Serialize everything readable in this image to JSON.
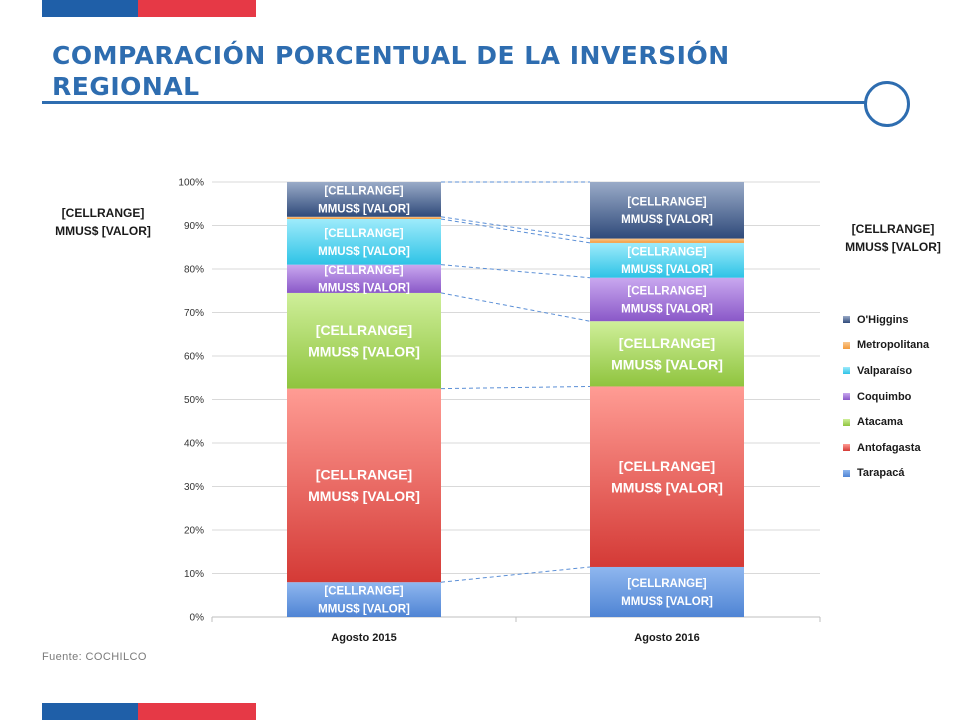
{
  "header": {
    "title": "COMPARACIÓN PORCENTUAL DE LA INVERSIÓN REGIONAL"
  },
  "side_labels": {
    "left": [
      "[CELLRANGE]",
      "MMUS$ [VALOR]"
    ],
    "right": [
      "[CELLRANGE]",
      "MMUS$ [VALOR]"
    ]
  },
  "footer": {
    "source": "Fuente: COCHILCO"
  },
  "colors": {
    "brand_blue": "#1f5fa8",
    "brand_red": "#e63946",
    "title_blue": "#2e6db0"
  },
  "chart_data": {
    "type": "bar",
    "stacked": true,
    "categories": [
      "Agosto 2015",
      "Agosto 2016"
    ],
    "ylim": [
      0,
      100
    ],
    "yticks": [
      "0%",
      "10%",
      "20%",
      "30%",
      "40%",
      "50%",
      "60%",
      "70%",
      "80%",
      "90%",
      "100%"
    ],
    "grid": true,
    "legend_position": "right",
    "series": [
      {
        "name": "Tarapacá",
        "values": [
          8,
          11.5
        ],
        "color": "#4f84d4",
        "color_light": "#8fb7ef",
        "label_line1": "[CELLRANGE]",
        "label_line2": "MMUS$ [VALOR]"
      },
      {
        "name": "Antofagasta",
        "values": [
          44.5,
          41.5
        ],
        "color": "#d43a36",
        "color_light": "#ff9c94",
        "label_line1": "[CELLRANGE]",
        "label_line2": "MMUS$ [VALOR]"
      },
      {
        "name": "Atacama",
        "values": [
          22,
          15
        ],
        "color": "#8fc43e",
        "color_light": "#cfef9a",
        "label_line1": "[CELLRANGE]",
        "label_line2": "MMUS$ [VALOR]"
      },
      {
        "name": "Coquimbo",
        "values": [
          6.5,
          10
        ],
        "color": "#8a58c8",
        "color_light": "#c9a8ef",
        "label_line1": "[CELLRANGE]",
        "label_line2": "MMUS$ [VALOR]"
      },
      {
        "name": "Valparaíso",
        "values": [
          10.5,
          8
        ],
        "color": "#2ec3e6",
        "color_light": "#9eebfb",
        "label_line1": "[CELLRANGE]",
        "label_line2": "MMUS$ [VALOR]"
      },
      {
        "name": "Metropolitana",
        "values": [
          0.5,
          1
        ],
        "color": "#f39a3a",
        "color_light": "#f9c890",
        "label_line1": "",
        "label_line2": ""
      },
      {
        "name": "O'Higgins",
        "values": [
          8,
          13
        ],
        "color": "#2f4a7a",
        "color_light": "#9aabc8",
        "label_line1": "[CELLRANGE]",
        "label_line2": "MMUS$ [VALOR]"
      }
    ]
  }
}
